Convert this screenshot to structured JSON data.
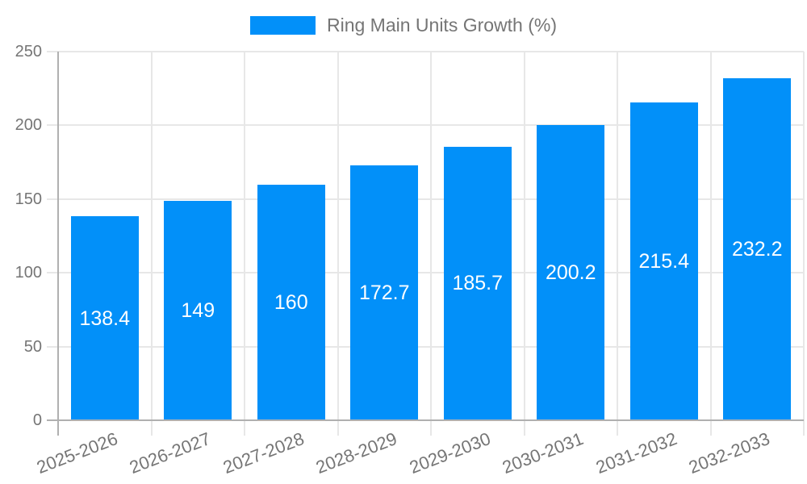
{
  "chart_data": {
    "type": "bar",
    "title": "Ring Main Units Growth (%)",
    "categories": [
      "2025-2026",
      "2026-2027",
      "2027-2028",
      "2028-2029",
      "2029-2030",
      "2030-2031",
      "2031-2032",
      "2032-2033"
    ],
    "values": [
      138.4,
      149,
      160,
      172.7,
      185.7,
      200.2,
      215.4,
      232.2
    ],
    "data_labels": [
      "138.4",
      "149",
      "160",
      "172.7",
      "185.7",
      "200.2",
      "215.4",
      "232.2"
    ],
    "xlabel": "",
    "ylabel": "",
    "ylim": [
      0,
      250
    ],
    "yticks": [
      0,
      50,
      100,
      150,
      200,
      250
    ],
    "grid": true,
    "legend_position": "top-center",
    "colors": {
      "bar": "#0290f9",
      "grid": "#e7e7e7",
      "axis": "#b0b0b0",
      "text": "#757575",
      "data_label": "#ffffff",
      "background": "#ffffff"
    }
  }
}
